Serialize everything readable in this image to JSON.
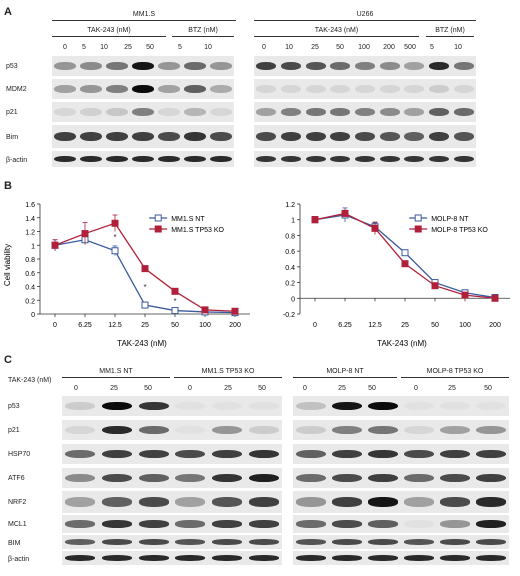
{
  "panelA": {
    "label": "A",
    "left": {
      "cell_line": "MM1.S",
      "group1_label": "TAK-243 (nM)",
      "group2_label": "BTZ (nM)",
      "concentrations": [
        "0",
        "5",
        "10",
        "25",
        "50",
        "5",
        "10"
      ],
      "intensities": {
        "p53": [
          0.35,
          0.4,
          0.5,
          0.95,
          0.35,
          0.55,
          0.35
        ],
        "MDM2": [
          0.3,
          0.35,
          0.45,
          1.0,
          0.3,
          0.6,
          0.25
        ],
        "p21": [
          0.05,
          0.08,
          0.12,
          0.45,
          0.05,
          0.2,
          0.05
        ],
        "Bim": [
          0.75,
          0.75,
          0.75,
          0.75,
          0.7,
          0.8,
          0.7
        ],
        "actin": [
          0.85,
          0.85,
          0.85,
          0.85,
          0.85,
          0.85,
          0.85
        ]
      }
    },
    "right": {
      "cell_line": "U266",
      "group1_label": "TAK-243 (nM)",
      "group2_label": "BTZ (nM)",
      "concentrations": [
        "0",
        "10",
        "25",
        "50",
        "100",
        "200",
        "500",
        "5",
        "10"
      ],
      "intensities": {
        "p53": [
          0.75,
          0.7,
          0.65,
          0.55,
          0.45,
          0.4,
          0.3,
          0.85,
          0.5
        ],
        "MDM2": [
          0.05,
          0.05,
          0.05,
          0.05,
          0.05,
          0.05,
          0.05,
          0.1,
          0.05
        ],
        "p21": [
          0.3,
          0.45,
          0.5,
          0.5,
          0.45,
          0.4,
          0.3,
          0.6,
          0.55
        ],
        "Bim": [
          0.7,
          0.75,
          0.75,
          0.75,
          0.7,
          0.65,
          0.6,
          0.75,
          0.65
        ],
        "actin": [
          0.8,
          0.8,
          0.8,
          0.8,
          0.8,
          0.8,
          0.8,
          0.8,
          0.8
        ]
      }
    },
    "rows": [
      "p53",
      "MDM2",
      "p21",
      "Bim",
      "β-actin"
    ]
  },
  "panelB": {
    "label": "B",
    "xlabel": "TAK-243 (nM)",
    "ylabel": "Cell viability"
  },
  "chart_data": [
    {
      "type": "line",
      "categories": [
        "0",
        "6.25",
        "12.5",
        "25",
        "50",
        "100",
        "200"
      ],
      "series": [
        {
          "name": "MM1.S NT",
          "values": [
            1.0,
            1.08,
            0.92,
            0.13,
            0.05,
            0.03,
            0.02
          ],
          "errors": [
            0.08,
            0.05,
            0.07,
            0.02,
            0.01,
            0.01,
            0.01
          ],
          "color": "#3a5a9e"
        },
        {
          "name": "MM1.S TP53 KO",
          "values": [
            1.0,
            1.17,
            1.32,
            0.66,
            0.33,
            0.06,
            0.04
          ],
          "errors": [
            0.08,
            0.16,
            0.12,
            0.02,
            0.02,
            0.01,
            0.01
          ],
          "color": "#b0203a"
        }
      ],
      "significance": [
        "",
        "",
        "*",
        "*",
        "*",
        "",
        ""
      ],
      "xlabel": "TAK-243 (nM)",
      "ylabel": "Cell viability",
      "ylim": [
        0,
        1.6
      ],
      "yticks": [
        "0",
        "0.2",
        "0.4",
        "0.6",
        "0.8",
        "1",
        "1.2",
        "1.4",
        "1.6"
      ],
      "legend": "top-right"
    },
    {
      "type": "line",
      "categories": [
        "0",
        "6.25",
        "12.5",
        "25",
        "50",
        "100",
        "200"
      ],
      "series": [
        {
          "name": "MOLP-8 NT",
          "values": [
            1.0,
            1.06,
            0.91,
            0.58,
            0.2,
            0.07,
            0.01
          ],
          "errors": [
            0.04,
            0.09,
            0.05,
            0.03,
            0.02,
            0.01,
            0.01
          ],
          "color": "#3a5a9e"
        },
        {
          "name": "MOLP-8 TP53 KO",
          "values": [
            1.0,
            1.08,
            0.89,
            0.44,
            0.16,
            0.04,
            0.0
          ],
          "errors": [
            0.04,
            0.04,
            0.08,
            0.03,
            0.02,
            0.01,
            0.01
          ],
          "color": "#b0203a"
        }
      ],
      "xlabel": "TAK-243 (nM)",
      "ylabel": "",
      "ylim": [
        -0.2,
        1.2
      ],
      "yticks": [
        "-0.2",
        "0",
        "0.2",
        "0.4",
        "0.6",
        "0.8",
        "1",
        "1.2"
      ],
      "legend": "top-right"
    }
  ],
  "panelC": {
    "label": "C",
    "treatment_label": "TAK-243 (nM)",
    "groups": [
      "MM1.S NT",
      "MM1.S TP53 KO",
      "MOLP-8 NT",
      "MOLP-8 TP53 KO"
    ],
    "concentrations": [
      "0",
      "25",
      "50"
    ],
    "rows": [
      "p53",
      "p21",
      "HSP70",
      "ATF6",
      "NRF2",
      "MCL1",
      "BIM",
      "β-actin"
    ],
    "left_intensities": [
      [
        0.1,
        1.0,
        0.8,
        0.0,
        0.0,
        0.0
      ],
      [
        0.05,
        0.85,
        0.55,
        0.0,
        0.35,
        0.1
      ],
      [
        0.55,
        0.75,
        0.75,
        0.7,
        0.75,
        0.8
      ],
      [
        0.4,
        0.7,
        0.6,
        0.5,
        0.8,
        0.9
      ],
      [
        0.3,
        0.6,
        0.7,
        0.3,
        0.65,
        0.75
      ],
      [
        0.55,
        0.8,
        0.75,
        0.55,
        0.75,
        0.75
      ],
      [
        0.6,
        0.7,
        0.7,
        0.65,
        0.7,
        0.7
      ],
      [
        0.85,
        0.85,
        0.85,
        0.85,
        0.85,
        0.85
      ]
    ],
    "right_intensities": [
      [
        0.15,
        0.95,
        1.0,
        0.0,
        0.0,
        0.0
      ],
      [
        0.1,
        0.45,
        0.5,
        0.05,
        0.3,
        0.35
      ],
      [
        0.6,
        0.75,
        0.8,
        0.7,
        0.75,
        0.75
      ],
      [
        0.55,
        0.7,
        0.75,
        0.55,
        0.7,
        0.75
      ],
      [
        0.35,
        0.75,
        0.95,
        0.3,
        0.7,
        0.85
      ],
      [
        0.55,
        0.7,
        0.6,
        0.0,
        0.35,
        0.9
      ],
      [
        0.65,
        0.7,
        0.7,
        0.65,
        0.7,
        0.7
      ],
      [
        0.85,
        0.85,
        0.85,
        0.85,
        0.85,
        0.85
      ]
    ]
  }
}
